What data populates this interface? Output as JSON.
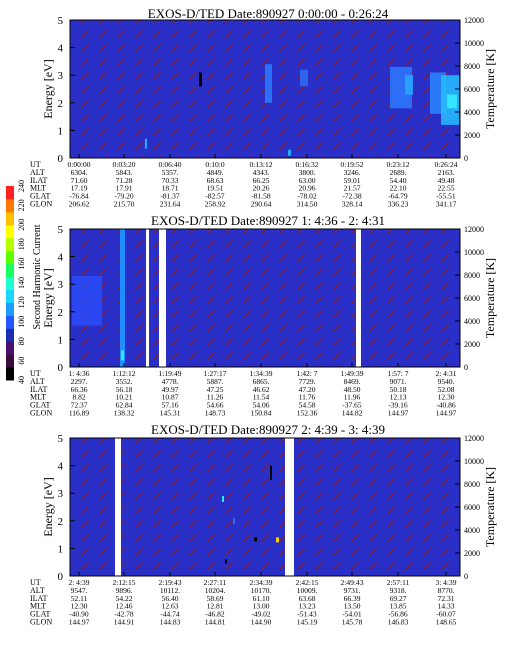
{
  "colors": {
    "background_spectrogram": "#2a2fc8",
    "speckle": "#8a1818",
    "gap": "#ffffff",
    "colorbar": [
      "#000000",
      "#3a0d3a",
      "#4b0f6e",
      "#1c2db4",
      "#2457ff",
      "#1e9cff",
      "#19d7ff",
      "#1fffd0",
      "#19ff60",
      "#5cff00",
      "#b8ff00",
      "#ffff00",
      "#ffc000",
      "#ff7800",
      "#ff2020"
    ]
  },
  "colorbar": {
    "label": "Second Harmonic Current",
    "ticks": [
      "40",
      "60",
      "80",
      "100",
      "120",
      "140",
      "160",
      "180",
      "200",
      "220",
      "240"
    ]
  },
  "chart_data": [
    {
      "type": "heatmap",
      "title": "EXOS-D/TED   Date:890927  0:00:00 - 0:26:24",
      "ylabel": "Energy [eV]",
      "y2label": "Temperature [K]",
      "ylim": [
        0,
        5
      ],
      "y2lim": [
        0,
        12000
      ],
      "yticks": [
        "0",
        "1",
        "2",
        "3",
        "4",
        "5"
      ],
      "y2ticks": [
        "0",
        "2000",
        "4000",
        "6000",
        "8000",
        "10000",
        "12000"
      ],
      "orbit_rows": [
        "UT",
        "ALT",
        "ILAT",
        "MLT",
        "GLAT",
        "GLON"
      ],
      "orbit_table": [
        [
          "0:00:00",
          "6304.",
          "71.60",
          "17.19",
          "-76.84",
          "206.62"
        ],
        [
          "0:03:20",
          "5843.",
          "71.28",
          "17.91",
          "-79.20",
          "215.70"
        ],
        [
          "0:06:40",
          "5357.",
          "70.33",
          "18.71",
          "-81.37",
          "231.64"
        ],
        [
          "0:10:0",
          "4849.",
          "68.63",
          "19.51",
          "-82.57",
          "258.92"
        ],
        [
          "0:13:12",
          "4343.",
          "66.25",
          "20.26",
          "-81.58",
          "290.64"
        ],
        [
          "0:16:32",
          "3800.",
          "63.00",
          "20.96",
          "-78.02",
          "314.50"
        ],
        [
          "0:19:52",
          "3246.",
          "59.01",
          "21.57",
          "-72.38",
          "328.14"
        ],
        [
          "0:23:12",
          "2689.",
          "54.40",
          "22.10",
          "-64.79",
          "336.23"
        ],
        [
          "0:26:24",
          "2163.",
          "49.48",
          "22.55",
          "-55.51",
          "341.17"
        ]
      ]
    },
    {
      "type": "heatmap",
      "title": "EXOS-D/TED   Date:890927  1: 4:36 - 2: 4:31",
      "ylabel": "Energy [eV]",
      "y2label": "Temperature [K]",
      "ylim": [
        0,
        5
      ],
      "y2lim": [
        0,
        12000
      ],
      "yticks": [
        "0",
        "1",
        "2",
        "3",
        "4",
        "5"
      ],
      "y2ticks": [
        "0",
        "2000",
        "4000",
        "6000",
        "8000",
        "10000",
        "12000"
      ],
      "orbit_rows": [
        "UT",
        "ALT",
        "ILAT",
        "MLT",
        "GLAT",
        "GLON"
      ],
      "orbit_table": [
        [
          "1: 4:36",
          "2297.",
          "66.36",
          "8.82",
          "72.37",
          "116.89"
        ],
        [
          "1:12:12",
          "3552.",
          "56.18",
          "10.21",
          "62.84",
          "138.32"
        ],
        [
          "1:19:49",
          "4778.",
          "49.97",
          "10.87",
          "57.16",
          "145.31"
        ],
        [
          "1:27:17",
          "5887.",
          "47.25",
          "11.26",
          "54.66",
          "148.73"
        ],
        [
          "1:34:39",
          "6865.",
          "46.62",
          "11.54",
          "54.06",
          "150.84"
        ],
        [
          "1:42: 7",
          "7729.",
          "47.20",
          "11.76",
          "54.58",
          "152.36"
        ],
        [
          "1:49:39",
          "8469.",
          "48.50",
          "11.96",
          "-37.65",
          "144.82"
        ],
        [
          "1:57: 7",
          "9071.",
          "50.18",
          "12.13",
          "-39.16",
          "144.97"
        ],
        [
          "2: 4:31",
          "9540.",
          "52.08",
          "12.30",
          "-40.86",
          "144.97"
        ]
      ]
    },
    {
      "type": "heatmap",
      "title": "EXOS-D/TED   Date:890927  2: 4:39 - 3: 4:39",
      "ylabel": "Energy [eV]",
      "y2label": "Temperature [K]",
      "ylim": [
        0,
        5
      ],
      "y2lim": [
        0,
        12000
      ],
      "yticks": [
        "0",
        "1",
        "2",
        "3",
        "4",
        "5"
      ],
      "y2ticks": [
        "0",
        "2000",
        "4000",
        "6000",
        "8000",
        "10000",
        "12000"
      ],
      "orbit_rows": [
        "UT",
        "ALT",
        "ILAT",
        "MLT",
        "GLAT",
        "GLON"
      ],
      "orbit_table": [
        [
          "2: 4:39",
          "9547.",
          "52.11",
          "12.30",
          "-40.90",
          "144.97"
        ],
        [
          "2:12:15",
          "9896.",
          "54.22",
          "12.46",
          "-42.78",
          "144.91"
        ],
        [
          "2:19:43",
          "10112.",
          "56.40",
          "12.63",
          "-44.74",
          "144.83"
        ],
        [
          "2:27:11",
          "10204.",
          "58.69",
          "12.81",
          "-46.82",
          "144.81"
        ],
        [
          "2:34:39",
          "10170.",
          "61.10",
          "13.00",
          "-49.02",
          "144.90"
        ],
        [
          "2:42:15",
          "10009.",
          "63.68",
          "13.23",
          "-51.43",
          "145.19"
        ],
        [
          "2:49:43",
          "9731.",
          "66.39",
          "13.50",
          "-54.01",
          "145.78"
        ],
        [
          "2:57:11",
          "9318.",
          "69.27",
          "13.85",
          "-56.86",
          "146.83"
        ],
        [
          "3: 4:39",
          "8770.",
          "72.31",
          "14.33",
          "-60.07",
          "148.65"
        ]
      ]
    }
  ]
}
